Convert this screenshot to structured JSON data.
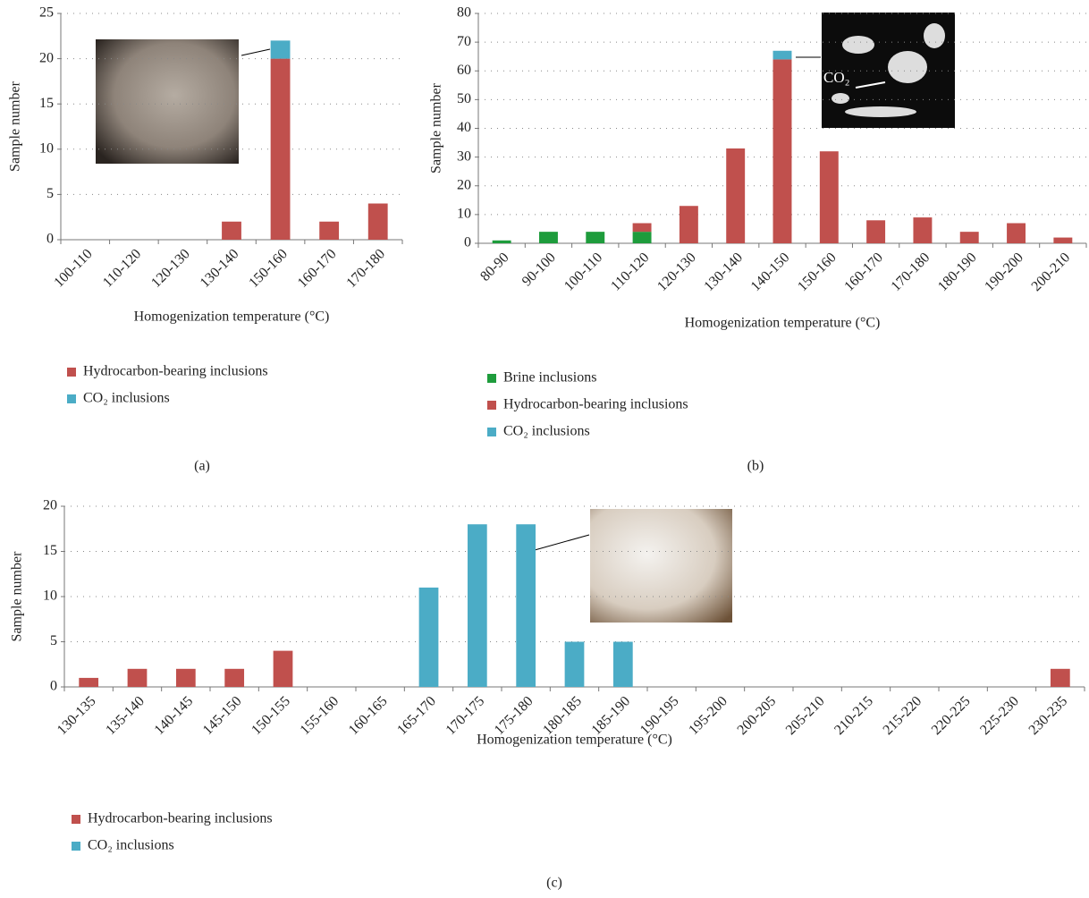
{
  "chart_data": [
    {
      "type": "bar",
      "stacked": true,
      "panel_label": "(a)",
      "x_label": "Homogenization temperature (°C)",
      "y_label": "Sample number",
      "categories": [
        "100-110",
        "110-120",
        "120-130",
        "130-140",
        "150-160",
        "160-170",
        "170-180"
      ],
      "series": [
        {
          "name": "Hydrocarbon-bearing inclusions",
          "color": "#c0504d",
          "values": [
            0,
            0,
            0,
            2,
            20,
            2,
            4
          ]
        },
        {
          "name": "CO₂ inclusions",
          "color": "#4bacc6",
          "values": [
            0,
            0,
            0,
            0,
            2,
            0,
            0
          ]
        }
      ],
      "ylim": [
        0,
        25
      ],
      "yticks": [
        0,
        5,
        10,
        15,
        20,
        25
      ],
      "grid": true
    },
    {
      "type": "bar",
      "stacked": true,
      "panel_label": "(b)",
      "x_label": "Homogenization temperature (°C)",
      "y_label": "Sample number",
      "annotations": [
        "CO₂"
      ],
      "categories": [
        "80-90",
        "90-100",
        "100-110",
        "110-120",
        "120-130",
        "130-140",
        "140-150",
        "150-160",
        "160-170",
        "170-180",
        "180-190",
        "190-200",
        "200-210"
      ],
      "series": [
        {
          "name": "Brine inclusions",
          "color": "#1e9c3c",
          "values": [
            1,
            4,
            4,
            4,
            0,
            0,
            0,
            0,
            0,
            0,
            0,
            0,
            0
          ]
        },
        {
          "name": "Hydrocarbon-bearing inclusions",
          "color": "#c0504d",
          "values": [
            0,
            0,
            0,
            3,
            13,
            33,
            64,
            32,
            8,
            9,
            4,
            7,
            2
          ]
        },
        {
          "name": "CO₂ inclusions",
          "color": "#4bacc6",
          "values": [
            0,
            0,
            0,
            0,
            0,
            0,
            3,
            0,
            0,
            0,
            0,
            0,
            0
          ]
        }
      ],
      "ylim": [
        0,
        80
      ],
      "yticks": [
        0,
        10,
        20,
        30,
        40,
        50,
        60,
        70,
        80
      ],
      "grid": true
    },
    {
      "type": "bar",
      "stacked": true,
      "panel_label": "(c)",
      "x_label": "Homogenization temperature (°C)",
      "y_label": "Sample number",
      "categories": [
        "130-135",
        "135-140",
        "140-145",
        "145-150",
        "150-155",
        "155-160",
        "160-165",
        "165-170",
        "170-175",
        "175-180",
        "180-185",
        "185-190",
        "190-195",
        "195-200",
        "200-205",
        "205-210",
        "210-215",
        "215-220",
        "220-225",
        "225-230",
        "230-235"
      ],
      "series": [
        {
          "name": "Hydrocarbon-bearing inclusions",
          "color": "#c0504d",
          "values": [
            1,
            2,
            2,
            2,
            4,
            0,
            0,
            0,
            0,
            0,
            0,
            0,
            0,
            0,
            0,
            0,
            0,
            0,
            0,
            0,
            2
          ]
        },
        {
          "name": "CO₂ inclusions",
          "color": "#4bacc6",
          "values": [
            0,
            0,
            0,
            0,
            0,
            0,
            0,
            11,
            18,
            18,
            5,
            5,
            0,
            0,
            0,
            0,
            0,
            0,
            0,
            0,
            0
          ]
        }
      ],
      "ylim": [
        0,
        20
      ],
      "yticks": [
        0,
        5,
        10,
        15,
        20
      ],
      "grid": true
    }
  ]
}
